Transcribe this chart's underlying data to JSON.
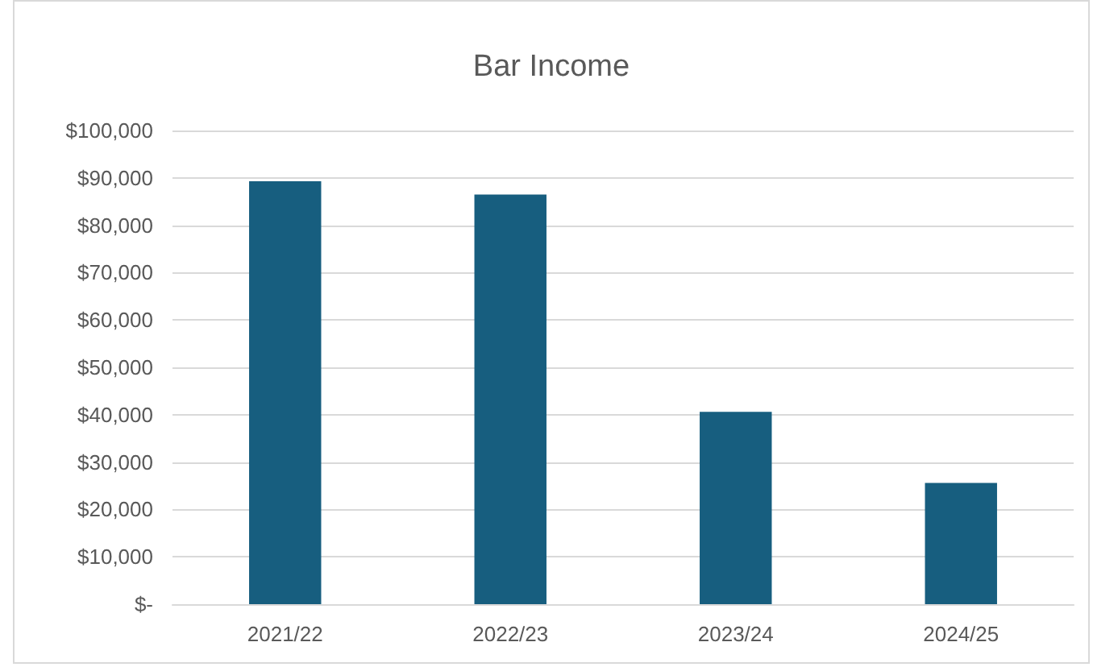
{
  "chart_data": {
    "type": "bar",
    "title": "Bar Income",
    "categories": [
      "2021/22",
      "2022/23",
      "2023/24",
      "2024/25"
    ],
    "values": [
      89300,
      86500,
      40600,
      25600
    ],
    "color": "#175e7f",
    "ylim": [
      0,
      100000
    ],
    "yticks": [
      {
        "value": 0,
        "label": "$-"
      },
      {
        "value": 10000,
        "label": "$10,000"
      },
      {
        "value": 20000,
        "label": "$20,000"
      },
      {
        "value": 30000,
        "label": "$30,000"
      },
      {
        "value": 40000,
        "label": "$40,000"
      },
      {
        "value": 50000,
        "label": "$50,000"
      },
      {
        "value": 60000,
        "label": "$60,000"
      },
      {
        "value": 70000,
        "label": "$70,000"
      },
      {
        "value": 80000,
        "label": "$80,000"
      },
      {
        "value": 90000,
        "label": "$90,000"
      },
      {
        "value": 100000,
        "label": "$100,000"
      }
    ],
    "grid": true
  }
}
